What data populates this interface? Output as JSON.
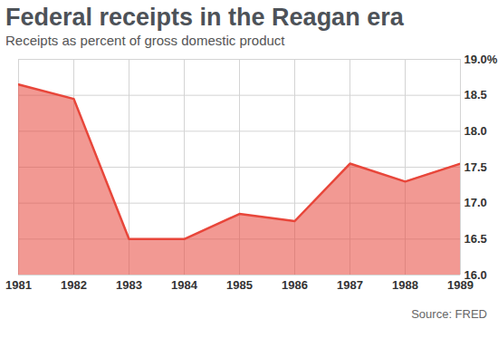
{
  "chart_data": {
    "type": "area",
    "title": "Federal receipts in the Reagan era",
    "subtitle": "Receipts as percent of gross domestic product",
    "source": "Source: FRED",
    "x": [
      1981,
      1982,
      1983,
      1984,
      1985,
      1986,
      1987,
      1988,
      1989
    ],
    "values": [
      18.65,
      18.45,
      16.5,
      16.5,
      16.85,
      16.75,
      17.55,
      17.3,
      17.55
    ],
    "color": "#e8463a",
    "xlim": [
      1981,
      1989
    ],
    "xticks": [
      1981,
      1982,
      1983,
      1984,
      1985,
      1986,
      1987,
      1988,
      1989
    ],
    "ylim": [
      16,
      19
    ],
    "yticks": [
      {
        "value": 16,
        "label": "16.0"
      },
      {
        "value": 16.5,
        "label": "16.5"
      },
      {
        "value": 17,
        "label": "17.0"
      },
      {
        "value": 17.5,
        "label": "17.5"
      },
      {
        "value": 18,
        "label": "18.0"
      },
      {
        "value": 18.5,
        "label": "18.5"
      },
      {
        "value": 19,
        "label": "19.0%"
      }
    ],
    "grid": true
  }
}
